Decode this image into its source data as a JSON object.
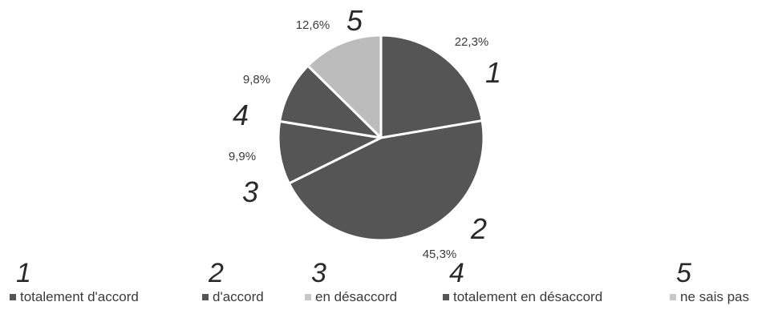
{
  "chart_data": {
    "type": "pie",
    "title": "",
    "categories": [
      "totalement d'accord",
      "d'accord",
      "en désaccord",
      "totalement en désaccord",
      "ne sais pas"
    ],
    "values": [
      22.3,
      45.3,
      9.9,
      9.8,
      12.6
    ],
    "value_labels": [
      "22,3%",
      "45,3%",
      "9,9%",
      "9,8%",
      "12,6%"
    ],
    "slice_colors": [
      "#555555",
      "#555555",
      "#555555",
      "#555555",
      "#bcbcbc"
    ],
    "handwritten_numbers": [
      "1",
      "2",
      "3",
      "4",
      "5"
    ],
    "legend": {
      "placement": "bottom",
      "entries": [
        {
          "label": "totalement d'accord",
          "marker_color": "#555555"
        },
        {
          "label": "d'accord",
          "marker_color": "#555555"
        },
        {
          "label": "en désaccord",
          "marker_color": "#c8c8c8"
        },
        {
          "label": "totalement en désaccord",
          "marker_color": "#555555"
        },
        {
          "label": "ne sais pas",
          "marker_color": "#c8c8c8"
        }
      ]
    }
  }
}
